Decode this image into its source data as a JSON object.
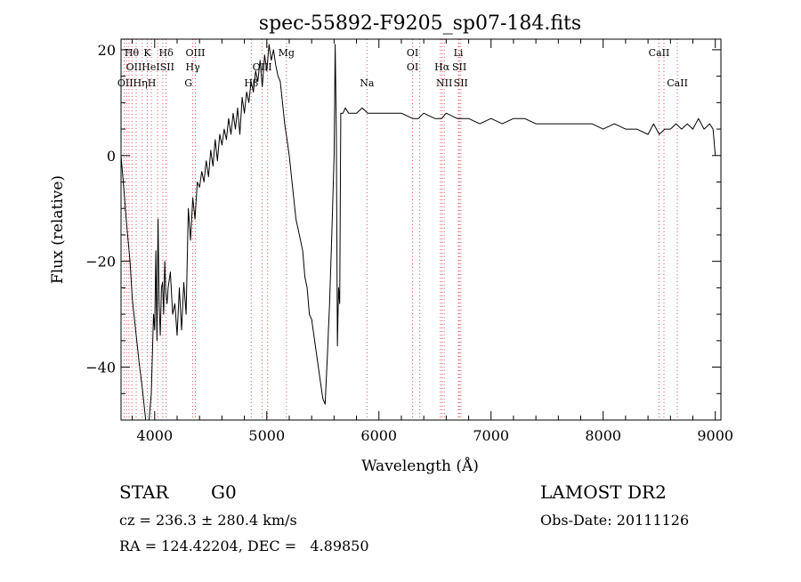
{
  "chart_data": {
    "type": "line",
    "title": "spec-55892-F9205_sp07-184.fits",
    "xlabel": "Wavelength (Å)",
    "ylabel": "Flux (relative)",
    "xlim": [
      3700,
      9050
    ],
    "ylim": [
      -50,
      22
    ],
    "xticks": [
      4000,
      5000,
      6000,
      7000,
      8000,
      9000
    ],
    "yticks": [
      -40,
      -20,
      0,
      20
    ],
    "grid": false,
    "series": [
      {
        "x": [
          3700,
          3720,
          3750,
          3780,
          3800,
          3830,
          3860,
          3890,
          3920,
          3950,
          3970,
          3990,
          4000,
          4010,
          4020,
          4030,
          4040,
          4050,
          4060,
          4070,
          4080,
          4090,
          4100,
          4110,
          4120,
          4140,
          4160,
          4180,
          4200,
          4220,
          4240,
          4260,
          4280,
          4300,
          4320,
          4340,
          4360,
          4380,
          4400,
          4420,
          4440,
          4460,
          4480,
          4500,
          4520,
          4540,
          4560,
          4580,
          4600,
          4620,
          4640,
          4660,
          4680,
          4700,
          4720,
          4740,
          4760,
          4780,
          4800,
          4820,
          4840,
          4860,
          4880,
          4900,
          4920,
          4940,
          4960,
          4980,
          5000,
          5020,
          5040,
          5060,
          5080,
          5100,
          5120,
          5140,
          5160,
          5180,
          5200,
          5220,
          5240,
          5260,
          5280,
          5300,
          5320,
          5340,
          5360,
          5380,
          5400,
          5420,
          5440,
          5460,
          5480,
          5500,
          5520,
          5540,
          5560,
          5580,
          5600,
          5610,
          5620,
          5630,
          5640,
          5650,
          5660,
          5680,
          5700,
          5730,
          5760,
          5800,
          5850,
          5900,
          5950,
          6000,
          6100,
          6200,
          6300,
          6350,
          6400,
          6500,
          6560,
          6600,
          6700,
          6800,
          6900,
          7000,
          7100,
          7200,
          7300,
          7400,
          7500,
          7600,
          7700,
          7800,
          7900,
          8000,
          8100,
          8200,
          8300,
          8400,
          8450,
          8500,
          8550,
          8600,
          8650,
          8700,
          8750,
          8800,
          8850,
          8900,
          8950,
          8980,
          9000
        ],
        "y": [
          0,
          -5,
          -13,
          -20,
          -27,
          -33,
          -39,
          -44,
          -50,
          -50,
          -45,
          -30,
          -33,
          -18,
          -35,
          -12,
          -28,
          -34,
          -25,
          -24,
          -30,
          -20,
          -26,
          -28,
          -25,
          -22,
          -30,
          -28,
          -34,
          -25,
          -33,
          -24,
          -30,
          -10,
          -16,
          -8,
          -12,
          -5,
          -6,
          -3,
          -5,
          -1,
          -4,
          1,
          -2,
          3,
          -1,
          4,
          2,
          5,
          3,
          7,
          4,
          8,
          5,
          9,
          4,
          11,
          8,
          12,
          10,
          14,
          12,
          16,
          14,
          18,
          13,
          19,
          16,
          21,
          18,
          20,
          17,
          15,
          14,
          10,
          6,
          3,
          0,
          -4,
          -8,
          -12,
          -14,
          -16,
          -18,
          -23,
          -25,
          -30,
          -31,
          -34,
          -37,
          -40,
          -43,
          -46,
          -47,
          -38,
          -28,
          -15,
          0,
          21,
          5,
          -36,
          -25,
          -28,
          8,
          8,
          9,
          8,
          8,
          8,
          9,
          8,
          8,
          8,
          8,
          8,
          7,
          7,
          8,
          7,
          7,
          8,
          7,
          7,
          6,
          7,
          6,
          7,
          7,
          6,
          6,
          6,
          6,
          6,
          6,
          5,
          6,
          5,
          5,
          4,
          6,
          4,
          5,
          5,
          6,
          5,
          6,
          5,
          7,
          5,
          6,
          5,
          0
        ]
      }
    ],
    "line_annotations": {
      "lines": [
        3727,
        3750,
        3771,
        3798,
        3835,
        3889,
        3934,
        3970,
        4026,
        4072,
        4102,
        4340,
        4363,
        4861,
        4959,
        5007,
        5175,
        5893,
        6300,
        6364,
        6548,
        6563,
        6583,
        6708,
        6717,
        6731,
        8498,
        8542,
        8662
      ],
      "labels": [
        {
          "t": "Hθ",
          "x": 3795,
          "row": 0
        },
        {
          "t": "K",
          "x": 3934,
          "row": 0
        },
        {
          "t": "Hδ",
          "x": 4102,
          "row": 0
        },
        {
          "t": "OIII",
          "x": 4363,
          "row": 0
        },
        {
          "t": "Mg",
          "x": 5175,
          "row": 0
        },
        {
          "t": "OI",
          "x": 6300,
          "row": 0
        },
        {
          "t": "Li",
          "x": 6708,
          "row": 0
        },
        {
          "t": "CaII",
          "x": 8498,
          "row": 0
        },
        {
          "t": "OIIHeISII",
          "x": 3960,
          "row": 1
        },
        {
          "t": "Hγ",
          "x": 4340,
          "row": 1
        },
        {
          "t": "OIII",
          "x": 4959,
          "row": 1
        },
        {
          "t": "OI",
          "x": 6300,
          "row": 1
        },
        {
          "t": "Hα",
          "x": 6563,
          "row": 1
        },
        {
          "t": "SII",
          "x": 6717,
          "row": 1
        },
        {
          "t": "OIIHηH",
          "x": 3840,
          "row": 2
        },
        {
          "t": "G",
          "x": 4300,
          "row": 2
        },
        {
          "t": "Hβ",
          "x": 4861,
          "row": 2
        },
        {
          "t": "Na",
          "x": 5893,
          "row": 2
        },
        {
          "t": "NII",
          "x": 6583,
          "row": 2
        },
        {
          "t": "SII",
          "x": 6731,
          "row": 2
        },
        {
          "t": "CaII",
          "x": 8662,
          "row": 2
        }
      ]
    }
  },
  "info": {
    "object_type": "STAR",
    "subclass": "G0",
    "survey": "LAMOST DR2",
    "cz_text": "cz = 236.3 ± 280.4 km/s",
    "obs_date_text": "Obs-Date: 20111126",
    "radec_text": "RA = 124.42204, DEC =   4.89850"
  }
}
